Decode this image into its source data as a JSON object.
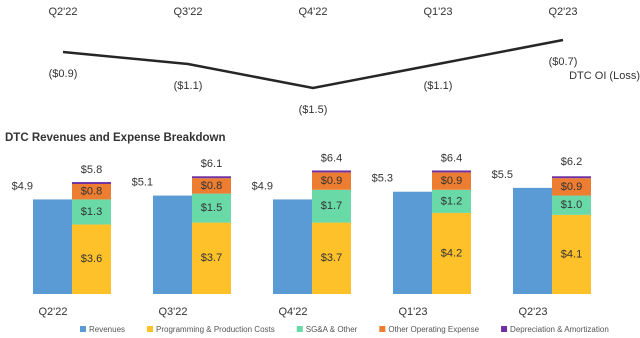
{
  "chart_data": [
    {
      "type": "line",
      "label": "DTC OI (Loss)",
      "categories": [
        "Q2'22",
        "Q3'22",
        "Q4'22",
        "Q1'23",
        "Q2'23"
      ],
      "values": [
        -0.9,
        -1.1,
        -1.5,
        -1.1,
        -0.7
      ],
      "value_labels": [
        "($0.9)",
        "($1.1)",
        "($1.5)",
        "($1.1)",
        "($0.7)"
      ],
      "color": "#262626"
    },
    {
      "type": "bar",
      "title": "DTC Revenues and Expense Breakdown",
      "categories": [
        "Q2'22",
        "Q3'22",
        "Q4'22",
        "Q1'23",
        "Q2'23"
      ],
      "series": [
        {
          "name": "Revenues",
          "color": "#5b9bd5",
          "stack": "revenues",
          "values": [
            4.9,
            5.1,
            4.9,
            5.3,
            5.5
          ],
          "value_labels": [
            "$4.9",
            "$5.1",
            "$4.9",
            "$5.3",
            "$5.5"
          ]
        },
        {
          "name": "Programming & Production Costs",
          "color": "#ffc12a",
          "stack": "expenses",
          "values": [
            3.6,
            3.7,
            3.7,
            4.2,
            4.1
          ],
          "value_labels": [
            "$3.6",
            "$3.7",
            "$3.7",
            "$4.2",
            "$4.1"
          ]
        },
        {
          "name": "SG&A & Other",
          "color": "#6ad9a8",
          "stack": "expenses",
          "values": [
            1.3,
            1.5,
            1.7,
            1.2,
            1.0
          ],
          "value_labels": [
            "$1.3",
            "$1.5",
            "$1.7",
            "$1.2",
            "$1.0"
          ]
        },
        {
          "name": "Other Operating Expense",
          "color": "#ed7d31",
          "stack": "expenses",
          "values": [
            0.8,
            0.8,
            0.9,
            0.9,
            0.9
          ],
          "value_labels": [
            "$0.8",
            "$0.8",
            "$0.9",
            "$0.9",
            "$0.9"
          ]
        },
        {
          "name": "Depreciation & Amortization",
          "color": "#7030a0",
          "stack": "expenses",
          "values": [
            0.1,
            0.1,
            0.1,
            0.1,
            0.1
          ]
        }
      ],
      "totals": [
        5.8,
        6.1,
        6.4,
        6.4,
        6.2
      ],
      "total_labels": [
        "$5.8",
        "$6.1",
        "$6.4",
        "$6.4",
        "$6.2"
      ]
    }
  ]
}
